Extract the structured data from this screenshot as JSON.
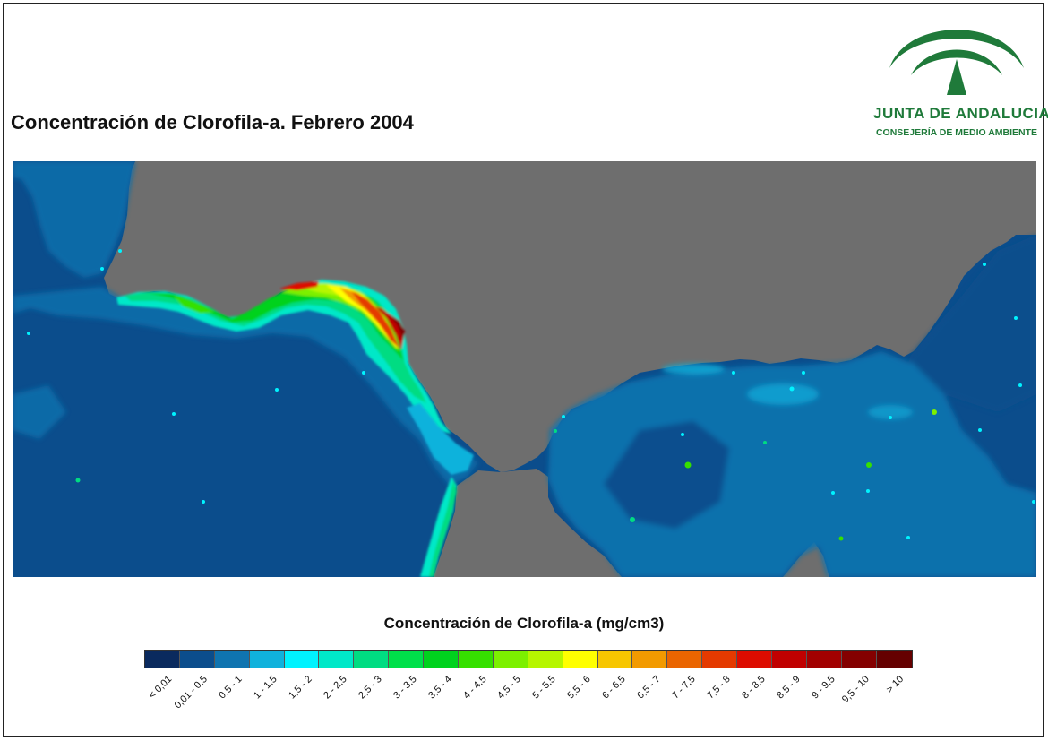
{
  "title": "Concentración de Clorofila-a. Febrero 2004",
  "logo": {
    "name": "JUNTA DE ANDALUCIA",
    "subtitle": "CONSEJERÍA DE MEDIO AMBIENTE",
    "color": "#1f7a3a",
    "icon": "junta-arch-logo"
  },
  "map": {
    "land_color": "#6e6e6e",
    "ocean_color": "#0b4d8c",
    "description_icon": "chlorophyll-map"
  },
  "legend": {
    "title": "Concentración de Clorofila-a (mg/cm3)",
    "classes": [
      {
        "label": "< 0,01",
        "color": "#0a2a5e"
      },
      {
        "label": "0,01 - 0,5",
        "color": "#0b4d8c"
      },
      {
        "label": "0,5 - 1",
        "color": "#0f74b0"
      },
      {
        "label": "1 - 1,5",
        "color": "#10b2dc"
      },
      {
        "label": "1,5 - 2",
        "color": "#00f3ff"
      },
      {
        "label": "2 - 2,5",
        "color": "#00e8c8"
      },
      {
        "label": "2,5 - 3",
        "color": "#00dc82"
      },
      {
        "label": "3 - 3,5",
        "color": "#00e04a"
      },
      {
        "label": "3,5 - 4",
        "color": "#00d21e"
      },
      {
        "label": "4 - 4,5",
        "color": "#36e000"
      },
      {
        "label": "4,5 - 5",
        "color": "#7cf000"
      },
      {
        "label": "5 - 5,5",
        "color": "#b6f600"
      },
      {
        "label": "5,5 - 6",
        "color": "#ffff00"
      },
      {
        "label": "6 - 6,5",
        "color": "#f7c600"
      },
      {
        "label": "6,5 - 7",
        "color": "#f29a00"
      },
      {
        "label": "7 - 7,5",
        "color": "#ea6500"
      },
      {
        "label": "7,5 - 8",
        "color": "#e43a00"
      },
      {
        "label": "8 - 8,5",
        "color": "#dd0c00"
      },
      {
        "label": "8,5 - 9",
        "color": "#c00000"
      },
      {
        "label": "9 - 9,5",
        "color": "#a20000"
      },
      {
        "label": "9,5 - 10",
        "color": "#840000"
      },
      {
        "label": "> 10",
        "color": "#650000"
      }
    ]
  }
}
